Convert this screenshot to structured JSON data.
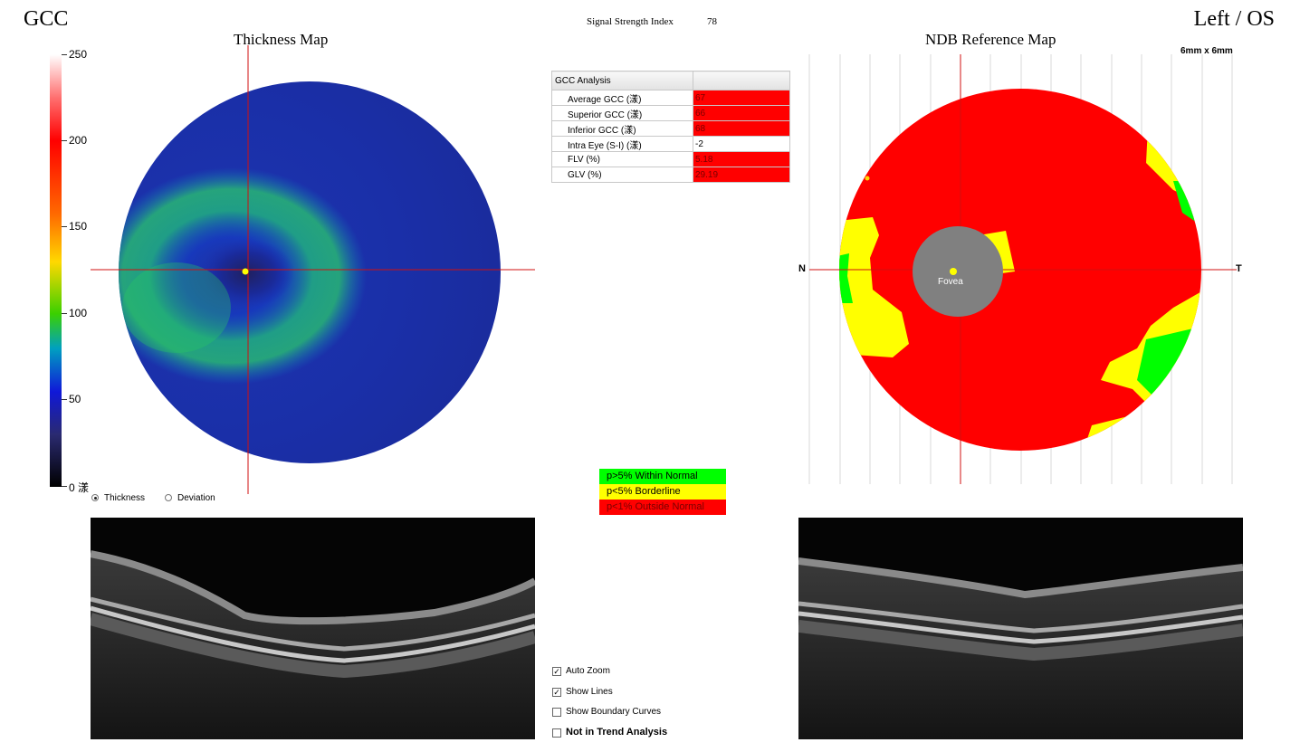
{
  "header": {
    "app_title": "GCC",
    "signal_strength_label": "Signal Strength Index",
    "signal_strength_value": "78",
    "eye_label": "Left / OS"
  },
  "thickness_map": {
    "title": "Thickness Map",
    "scale_ticks": [
      "250",
      "200",
      "150",
      "100",
      "50",
      "0 漾"
    ]
  },
  "ndb_map": {
    "title": "NDB Reference Map",
    "scan_size": "6mm x 6mm",
    "nasal_label": "N",
    "temporal_label": "T",
    "fovea_label": "Fovea"
  },
  "gcc_analysis": {
    "header": "GCC Analysis",
    "rows": [
      {
        "label": "Average GCC (漾)",
        "value": "67",
        "status": "outside"
      },
      {
        "label": "Superior GCC (漾)",
        "value": "66",
        "status": "outside"
      },
      {
        "label": "Inferior GCC (漾)",
        "value": "68",
        "status": "outside"
      },
      {
        "label": "Intra Eye (S-I) (漾)",
        "value": "-2",
        "status": "normal"
      },
      {
        "label": "FLV (%)",
        "value": "5.18",
        "status": "outside"
      },
      {
        "label": "GLV (%)",
        "value": "29.19",
        "status": "outside"
      }
    ]
  },
  "legend": [
    {
      "label": "p>5% Within Normal",
      "color": "#00ff00"
    },
    {
      "label": "p<5% Borderline",
      "color": "#ffff00"
    },
    {
      "label": "p<1% Outside Normal",
      "color": "#ff0000"
    }
  ],
  "display_mode": {
    "options": [
      "Thickness",
      "Deviation"
    ],
    "selected": "Thickness"
  },
  "options": {
    "auto_zoom": {
      "label": "Auto Zoom",
      "checked": true
    },
    "show_lines": {
      "label": "Show Lines",
      "checked": true
    },
    "show_boundary_curves": {
      "label": "Show Boundary Curves",
      "checked": false
    },
    "not_in_trend": {
      "label": "Not in Trend Analysis",
      "checked": false
    }
  },
  "colors": {
    "outside_normal": "#ff0000",
    "borderline": "#ffff00",
    "within_normal": "#00ff00",
    "fovea": "#808080",
    "crosshair": "#d01010"
  }
}
